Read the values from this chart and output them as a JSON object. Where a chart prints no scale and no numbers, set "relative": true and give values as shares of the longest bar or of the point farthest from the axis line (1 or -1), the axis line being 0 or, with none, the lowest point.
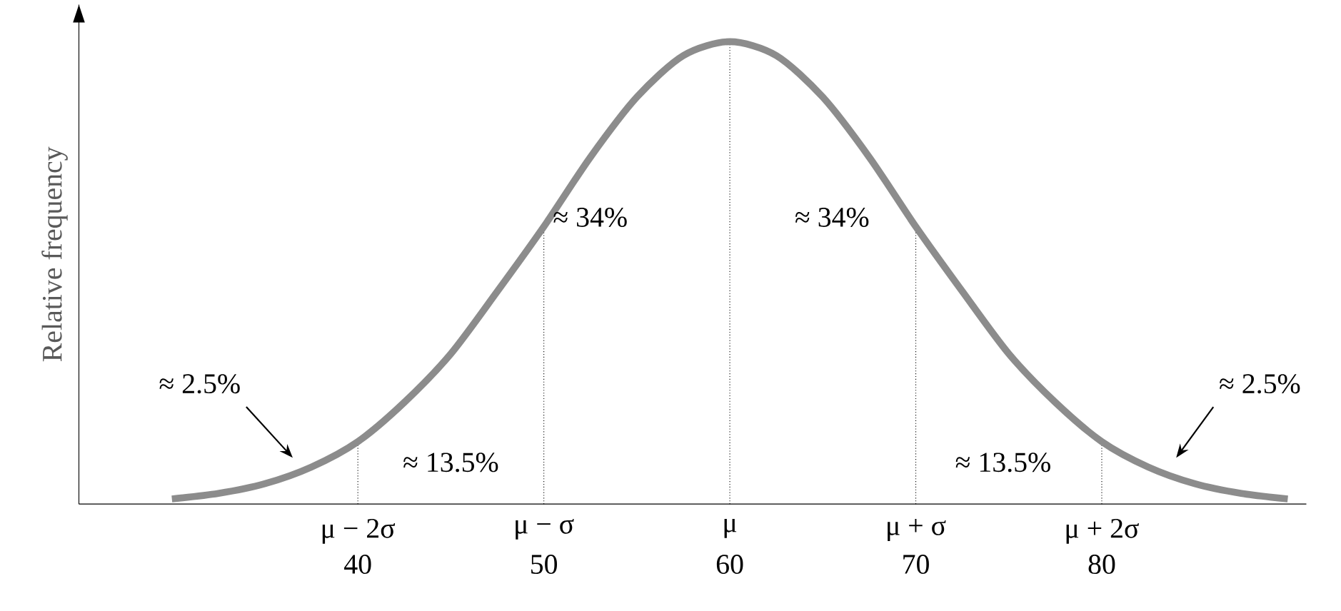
{
  "chart_data": {
    "type": "line",
    "ylabel": "Relative frequency",
    "relative": true,
    "color": "#8c8c8c",
    "marker": "none",
    "x": [
      30,
      32.5,
      35,
      37.5,
      40,
      42.5,
      45,
      47.5,
      50,
      52.5,
      55,
      57.5,
      60,
      62.5,
      65,
      67.5,
      70,
      72.5,
      75,
      77.5,
      80,
      82.5,
      85,
      87.5,
      90
    ],
    "values": [
      0.011,
      0.023,
      0.044,
      0.08,
      0.135,
      0.22,
      0.325,
      0.46,
      0.6,
      0.75,
      0.88,
      0.97,
      1,
      0.97,
      0.88,
      0.75,
      0.6,
      0.46,
      0.325,
      0.22,
      0.135,
      0.08,
      0.044,
      0.023,
      0.011
    ],
    "xlim": [
      25,
      91
    ],
    "xticks": [
      40,
      50,
      60,
      70,
      80
    ],
    "ref_lines": [
      {
        "axis": "x",
        "value": 40,
        "line_style": "dotted"
      },
      {
        "axis": "x",
        "value": 50,
        "line_style": "dotted"
      },
      {
        "axis": "x",
        "value": 60,
        "line_style": "dotted"
      },
      {
        "axis": "x",
        "value": 70,
        "line_style": "dotted"
      },
      {
        "axis": "x",
        "value": 80,
        "line_style": "dotted"
      }
    ],
    "annotations": [
      "≈ 2.5%",
      "≈ 13.5%",
      "≈ 34%",
      "≈ 34%",
      "≈ 13.5%",
      "≈ 2.5%",
      {
        "text": "μ − 2σ",
        "x": 40,
        "y": 0
      },
      {
        "text": "μ − σ",
        "x": 50,
        "y": 0
      },
      {
        "text": "μ",
        "x": 60,
        "y": 0
      },
      {
        "text": "μ + σ",
        "x": 70,
        "y": 0
      },
      {
        "text": "μ + 2σ",
        "x": 80,
        "y": 0
      }
    ]
  }
}
